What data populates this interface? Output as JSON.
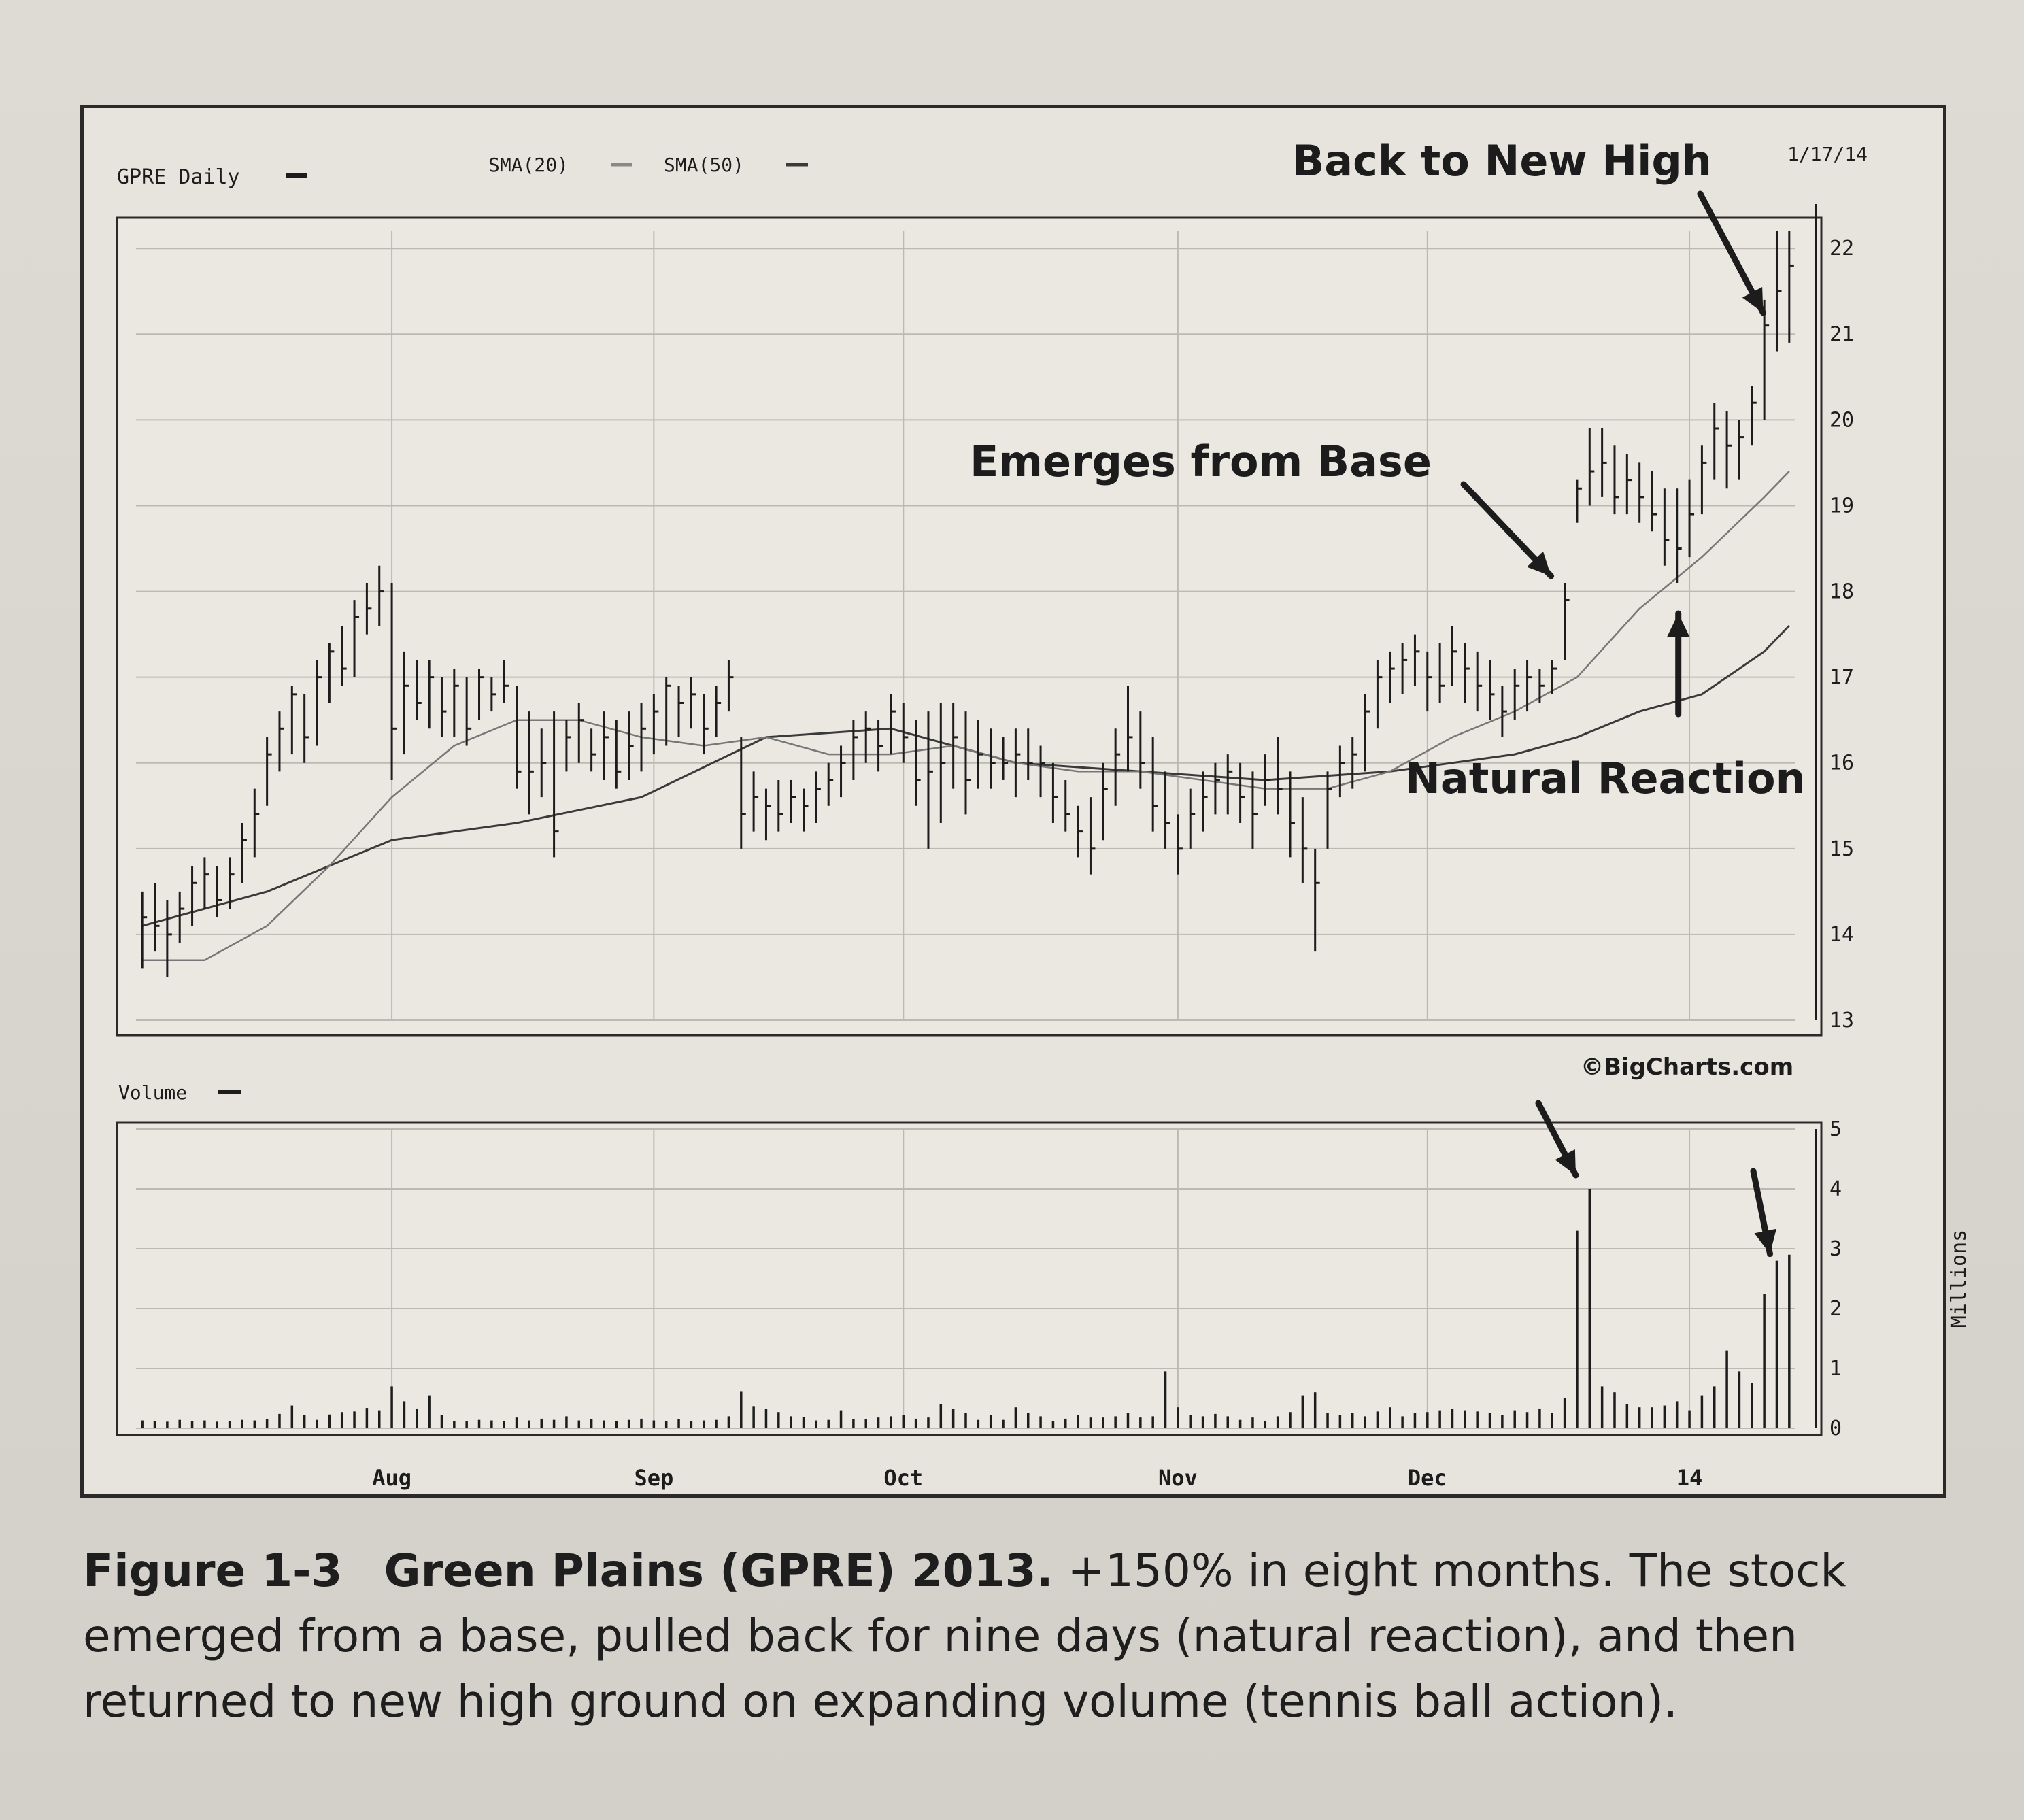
{
  "chart_data": {
    "type": "ohlc_with_volume",
    "symbol_label": "GPRE Daily",
    "indicators": [
      "SMA(20)",
      "SMA(50)"
    ],
    "date_label": "1/17/14",
    "source": "©BigCharts.com",
    "price_axis": {
      "ticks": [
        "13",
        "14",
        "15",
        "16",
        "17",
        "18",
        "19",
        "20",
        "21",
        "22"
      ],
      "ylim": [
        13,
        22.2
      ]
    },
    "volume_axis": {
      "label": "Volume",
      "unit_label": "Millions",
      "ticks": [
        "0",
        "1",
        "2",
        "3",
        "4",
        "5"
      ],
      "ylim": [
        0,
        5
      ]
    },
    "x_ticks": [
      {
        "label": "Aug",
        "index": 20
      },
      {
        "label": "Sep",
        "index": 41
      },
      {
        "label": "Oct",
        "index": 61
      },
      {
        "label": "Nov",
        "index": 83
      },
      {
        "label": "Dec",
        "index": 103
      },
      {
        "label": "14",
        "index": 124
      }
    ],
    "series": [
      {
        "name": "GPRE Daily",
        "type": "ohlc"
      },
      {
        "name": "SMA(20)",
        "type": "line"
      },
      {
        "name": "SMA(50)",
        "type": "line"
      },
      {
        "name": "Volume",
        "type": "bar"
      }
    ],
    "bars": [
      [
        0,
        14.5,
        13.6,
        14.2,
        0.13
      ],
      [
        1,
        14.6,
        13.8,
        14.1,
        0.12
      ],
      [
        2,
        14.4,
        13.5,
        14.0,
        0.11
      ],
      [
        3,
        14.5,
        13.9,
        14.3,
        0.14
      ],
      [
        4,
        14.8,
        14.1,
        14.6,
        0.12
      ],
      [
        5,
        14.9,
        14.3,
        14.7,
        0.13
      ],
      [
        6,
        14.8,
        14.2,
        14.4,
        0.11
      ],
      [
        7,
        14.9,
        14.3,
        14.7,
        0.12
      ],
      [
        8,
        15.3,
        14.6,
        15.1,
        0.14
      ],
      [
        9,
        15.7,
        14.9,
        15.4,
        0.13
      ],
      [
        10,
        16.3,
        15.5,
        16.1,
        0.15
      ],
      [
        11,
        16.6,
        15.9,
        16.4,
        0.24
      ],
      [
        12,
        16.9,
        16.1,
        16.8,
        0.38
      ],
      [
        13,
        16.8,
        16.0,
        16.3,
        0.22
      ],
      [
        14,
        17.2,
        16.2,
        17.0,
        0.14
      ],
      [
        15,
        17.4,
        16.7,
        17.3,
        0.23
      ],
      [
        16,
        17.6,
        16.9,
        17.1,
        0.27
      ],
      [
        17,
        17.9,
        17.0,
        17.7,
        0.28
      ],
      [
        18,
        18.1,
        17.5,
        17.8,
        0.34
      ],
      [
        19,
        18.3,
        17.6,
        18.0,
        0.3
      ],
      [
        20,
        18.1,
        15.8,
        16.4,
        0.7
      ],
      [
        21,
        17.3,
        16.1,
        16.9,
        0.45
      ],
      [
        22,
        17.2,
        16.5,
        16.7,
        0.33
      ],
      [
        23,
        17.2,
        16.4,
        17.0,
        0.55
      ],
      [
        24,
        17.0,
        16.3,
        16.6,
        0.22
      ],
      [
        25,
        17.1,
        16.3,
        16.9,
        0.12
      ],
      [
        26,
        17.0,
        16.2,
        16.4,
        0.12
      ],
      [
        27,
        17.1,
        16.5,
        17.0,
        0.14
      ],
      [
        28,
        17.0,
        16.6,
        16.8,
        0.13
      ],
      [
        29,
        17.2,
        16.7,
        16.9,
        0.12
      ],
      [
        30,
        16.9,
        15.7,
        15.9,
        0.18
      ],
      [
        31,
        16.6,
        15.4,
        15.9,
        0.13
      ],
      [
        32,
        16.4,
        15.6,
        16.0,
        0.16
      ],
      [
        33,
        16.6,
        14.9,
        15.2,
        0.14
      ],
      [
        34,
        16.5,
        15.9,
        16.3,
        0.2
      ],
      [
        35,
        16.7,
        16.0,
        16.5,
        0.13
      ],
      [
        36,
        16.4,
        15.9,
        16.1,
        0.15
      ],
      [
        37,
        16.6,
        15.8,
        16.3,
        0.13
      ],
      [
        38,
        16.5,
        15.7,
        15.9,
        0.12
      ],
      [
        39,
        16.6,
        15.8,
        16.2,
        0.14
      ],
      [
        40,
        16.7,
        15.9,
        16.4,
        0.16
      ],
      [
        41,
        16.8,
        16.1,
        16.6,
        0.13
      ],
      [
        42,
        17.0,
        16.2,
        16.9,
        0.12
      ],
      [
        43,
        16.9,
        16.3,
        16.7,
        0.15
      ],
      [
        44,
        17.0,
        16.4,
        16.8,
        0.12
      ],
      [
        45,
        16.8,
        16.1,
        16.4,
        0.13
      ],
      [
        46,
        16.9,
        16.3,
        16.7,
        0.14
      ],
      [
        47,
        17.2,
        16.6,
        17.0,
        0.2
      ],
      [
        48,
        16.3,
        15.0,
        15.4,
        0.62
      ],
      [
        49,
        15.9,
        15.2,
        15.6,
        0.36
      ],
      [
        50,
        15.7,
        15.1,
        15.5,
        0.32
      ],
      [
        51,
        15.8,
        15.2,
        15.4,
        0.27
      ],
      [
        52,
        15.8,
        15.3,
        15.6,
        0.2
      ],
      [
        53,
        15.7,
        15.2,
        15.5,
        0.19
      ],
      [
        54,
        15.9,
        15.3,
        15.7,
        0.13
      ],
      [
        55,
        16.0,
        15.5,
        15.8,
        0.14
      ],
      [
        56,
        16.2,
        15.6,
        16.0,
        0.3
      ],
      [
        57,
        16.5,
        15.8,
        16.3,
        0.15
      ],
      [
        58,
        16.6,
        16.0,
        16.4,
        0.15
      ],
      [
        59,
        16.5,
        15.9,
        16.2,
        0.18
      ],
      [
        60,
        16.8,
        16.1,
        16.6,
        0.2
      ],
      [
        61,
        16.7,
        16.0,
        16.3,
        0.22
      ],
      [
        62,
        16.5,
        15.5,
        15.8,
        0.16
      ],
      [
        63,
        16.6,
        15.0,
        15.9,
        0.18
      ],
      [
        64,
        16.7,
        15.3,
        16.0,
        0.4
      ],
      [
        65,
        16.7,
        15.7,
        16.3,
        0.32
      ],
      [
        66,
        16.6,
        15.4,
        15.8,
        0.25
      ],
      [
        67,
        16.5,
        15.7,
        16.1,
        0.14
      ],
      [
        68,
        16.4,
        15.7,
        16.0,
        0.22
      ],
      [
        69,
        16.3,
        15.8,
        16.0,
        0.14
      ],
      [
        70,
        16.4,
        15.6,
        16.1,
        0.35
      ],
      [
        71,
        16.4,
        15.8,
        16.0,
        0.25
      ],
      [
        72,
        16.2,
        15.6,
        16.0,
        0.2
      ],
      [
        73,
        16.0,
        15.3,
        15.6,
        0.12
      ],
      [
        74,
        15.8,
        15.2,
        15.4,
        0.16
      ],
      [
        75,
        15.5,
        14.9,
        15.2,
        0.22
      ],
      [
        76,
        15.6,
        14.7,
        15.0,
        0.18
      ],
      [
        77,
        16.0,
        15.1,
        15.7,
        0.18
      ],
      [
        78,
        16.4,
        15.5,
        16.1,
        0.2
      ],
      [
        79,
        16.9,
        15.9,
        16.3,
        0.25
      ],
      [
        80,
        16.6,
        15.7,
        16.0,
        0.18
      ],
      [
        81,
        16.3,
        15.2,
        15.5,
        0.2
      ],
      [
        82,
        15.9,
        15.0,
        15.3,
        0.95
      ],
      [
        83,
        15.4,
        14.7,
        15.0,
        0.35
      ],
      [
        84,
        15.7,
        15.0,
        15.4,
        0.22
      ],
      [
        85,
        15.9,
        15.2,
        15.6,
        0.2
      ],
      [
        86,
        16.0,
        15.4,
        15.8,
        0.24
      ],
      [
        87,
        16.1,
        15.4,
        15.9,
        0.2
      ],
      [
        88,
        16.0,
        15.3,
        15.6,
        0.14
      ],
      [
        89,
        15.9,
        15.0,
        15.4,
        0.18
      ],
      [
        90,
        16.1,
        15.5,
        15.8,
        0.12
      ],
      [
        91,
        16.3,
        15.4,
        15.7,
        0.2
      ],
      [
        92,
        15.9,
        14.9,
        15.3,
        0.27
      ],
      [
        93,
        15.6,
        14.6,
        15.0,
        0.55
      ],
      [
        94,
        15.0,
        13.8,
        14.6,
        0.6
      ],
      [
        95,
        15.9,
        15.0,
        15.7,
        0.25
      ],
      [
        96,
        16.2,
        15.6,
        16.0,
        0.22
      ],
      [
        97,
        16.3,
        15.7,
        16.1,
        0.25
      ],
      [
        98,
        16.8,
        15.9,
        16.6,
        0.2
      ],
      [
        99,
        17.2,
        16.4,
        17.0,
        0.28
      ],
      [
        100,
        17.3,
        16.7,
        17.1,
        0.35
      ],
      [
        101,
        17.4,
        16.8,
        17.2,
        0.2
      ],
      [
        102,
        17.5,
        16.9,
        17.3,
        0.25
      ],
      [
        103,
        17.3,
        16.6,
        17.0,
        0.27
      ],
      [
        104,
        17.4,
        16.7,
        16.9,
        0.3
      ],
      [
        105,
        17.6,
        16.9,
        17.3,
        0.32
      ],
      [
        106,
        17.4,
        16.7,
        17.1,
        0.3
      ],
      [
        107,
        17.3,
        16.6,
        16.9,
        0.28
      ],
      [
        108,
        17.2,
        16.5,
        16.8,
        0.25
      ],
      [
        109,
        16.9,
        16.3,
        16.6,
        0.22
      ],
      [
        110,
        17.1,
        16.5,
        16.9,
        0.3
      ],
      [
        111,
        17.2,
        16.6,
        17.0,
        0.27
      ],
      [
        112,
        17.1,
        16.7,
        16.9,
        0.33
      ],
      [
        113,
        17.2,
        16.8,
        17.1,
        0.25
      ],
      [
        114,
        18.1,
        17.2,
        17.9,
        0.5
      ],
      [
        115,
        19.3,
        18.8,
        19.2,
        3.3
      ],
      [
        116,
        19.9,
        19.0,
        19.4,
        4.0
      ],
      [
        117,
        19.9,
        19.1,
        19.5,
        0.7
      ],
      [
        118,
        19.7,
        18.9,
        19.1,
        0.6
      ],
      [
        119,
        19.6,
        18.9,
        19.3,
        0.4
      ],
      [
        120,
        19.5,
        18.8,
        19.1,
        0.35
      ],
      [
        121,
        19.4,
        18.7,
        18.9,
        0.35
      ],
      [
        122,
        19.2,
        18.3,
        18.6,
        0.38
      ],
      [
        123,
        19.2,
        18.1,
        18.5,
        0.45
      ],
      [
        124,
        19.3,
        18.4,
        18.9,
        0.3
      ],
      [
        125,
        19.7,
        18.9,
        19.5,
        0.55
      ],
      [
        126,
        20.2,
        19.3,
        19.9,
        0.7
      ],
      [
        127,
        20.1,
        19.2,
        19.7,
        1.3
      ],
      [
        128,
        20.0,
        19.3,
        19.8,
        0.95
      ],
      [
        129,
        20.4,
        19.7,
        20.2,
        0.75
      ],
      [
        130,
        21.4,
        20.0,
        21.1,
        2.25
      ],
      [
        131,
        22.2,
        20.8,
        21.5,
        2.8
      ],
      [
        132,
        22.2,
        20.9,
        21.8,
        2.9
      ]
    ],
    "sma20": [
      [
        0,
        13.7
      ],
      [
        5,
        13.7
      ],
      [
        10,
        14.1
      ],
      [
        15,
        14.8
      ],
      [
        20,
        15.6
      ],
      [
        25,
        16.2
      ],
      [
        30,
        16.5
      ],
      [
        35,
        16.5
      ],
      [
        40,
        16.3
      ],
      [
        45,
        16.2
      ],
      [
        50,
        16.3
      ],
      [
        55,
        16.1
      ],
      [
        60,
        16.1
      ],
      [
        65,
        16.2
      ],
      [
        70,
        16.0
      ],
      [
        75,
        15.9
      ],
      [
        80,
        15.9
      ],
      [
        85,
        15.8
      ],
      [
        90,
        15.7
      ],
      [
        95,
        15.7
      ],
      [
        100,
        15.9
      ],
      [
        105,
        16.3
      ],
      [
        110,
        16.6
      ],
      [
        115,
        17.0
      ],
      [
        120,
        17.8
      ],
      [
        125,
        18.4
      ],
      [
        130,
        19.1
      ],
      [
        132,
        19.4
      ]
    ],
    "sma50": [
      [
        0,
        14.1
      ],
      [
        10,
        14.5
      ],
      [
        20,
        15.1
      ],
      [
        30,
        15.3
      ],
      [
        40,
        15.6
      ],
      [
        50,
        16.3
      ],
      [
        60,
        16.4
      ],
      [
        70,
        16.0
      ],
      [
        80,
        15.9
      ],
      [
        90,
        15.8
      ],
      [
        100,
        15.9
      ],
      [
        110,
        16.1
      ],
      [
        115,
        16.3
      ],
      [
        120,
        16.6
      ],
      [
        125,
        16.8
      ],
      [
        130,
        17.3
      ],
      [
        132,
        17.6
      ]
    ],
    "annotations": [
      {
        "text": "Back to New High",
        "target_index": 131
      },
      {
        "text": "Emerges from Base",
        "target_index": 114
      },
      {
        "text": "Natural Reaction",
        "target_index": 123
      }
    ]
  },
  "caption": {
    "label": "Figure 1-3",
    "title": "Green Plains (GPRE) 2013.",
    "text": "+150% in eight months. The stock emerged from a base, pulled back for nine days (natural reaction), and then returned to new high ground on expanding volume (tennis ball action)."
  },
  "colors": {
    "ink": "#1c1c1c",
    "grid": "#bcb9b2",
    "panel": "#e7e4de",
    "paper": "#dcd9d2"
  }
}
